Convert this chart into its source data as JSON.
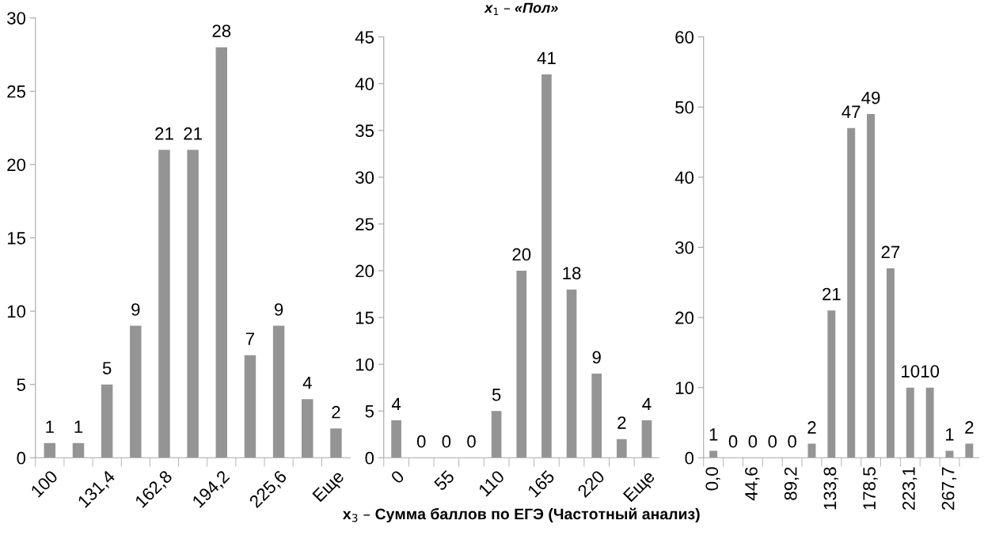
{
  "chart_data": [
    {
      "type": "bar",
      "categories": [
        "100",
        null,
        "131,4",
        null,
        "162,8",
        null,
        "194,2",
        null,
        "225,6",
        null,
        "Еще"
      ],
      "values": [
        1,
        1,
        5,
        9,
        21,
        21,
        28,
        7,
        9,
        4,
        2
      ],
      "color": "#949494",
      "ylim": [
        0,
        30
      ],
      "yticks": [
        0,
        5,
        10,
        15,
        20,
        25,
        30
      ],
      "grid": false,
      "data_labels": true,
      "legend": false
    },
    {
      "type": "bar",
      "title": "x$_{1}$ – «Пол»",
      "xlabel": "x$_{3}$ – Сумма баллов по ЕГЭ (Частотный анализ)",
      "categories": [
        "0",
        null,
        "55",
        null,
        "110",
        null,
        "165",
        null,
        "220",
        null,
        "Еще"
      ],
      "values": [
        4,
        0,
        0,
        0,
        5,
        20,
        41,
        18,
        9,
        2,
        4
      ],
      "color": "#949494",
      "ylim": [
        0,
        45
      ],
      "yticks": [
        0,
        5,
        10,
        15,
        20,
        25,
        30,
        35,
        40,
        45
      ],
      "grid": false,
      "data_labels": true,
      "legend": false
    },
    {
      "type": "bar",
      "categories": [
        "0,0",
        null,
        "44,6",
        null,
        "89,2",
        null,
        "133,8",
        null,
        "178,5",
        null,
        "223,1",
        null,
        "267,7",
        null
      ],
      "values": [
        1,
        0,
        0,
        0,
        0,
        2,
        21,
        47,
        49,
        27,
        10,
        10,
        1,
        2
      ],
      "color": "#949494",
      "ylim": [
        0,
        60
      ],
      "yticks": [
        0,
        10,
        20,
        30,
        40,
        50,
        60
      ],
      "grid": false,
      "data_labels": true,
      "legend": false
    }
  ]
}
